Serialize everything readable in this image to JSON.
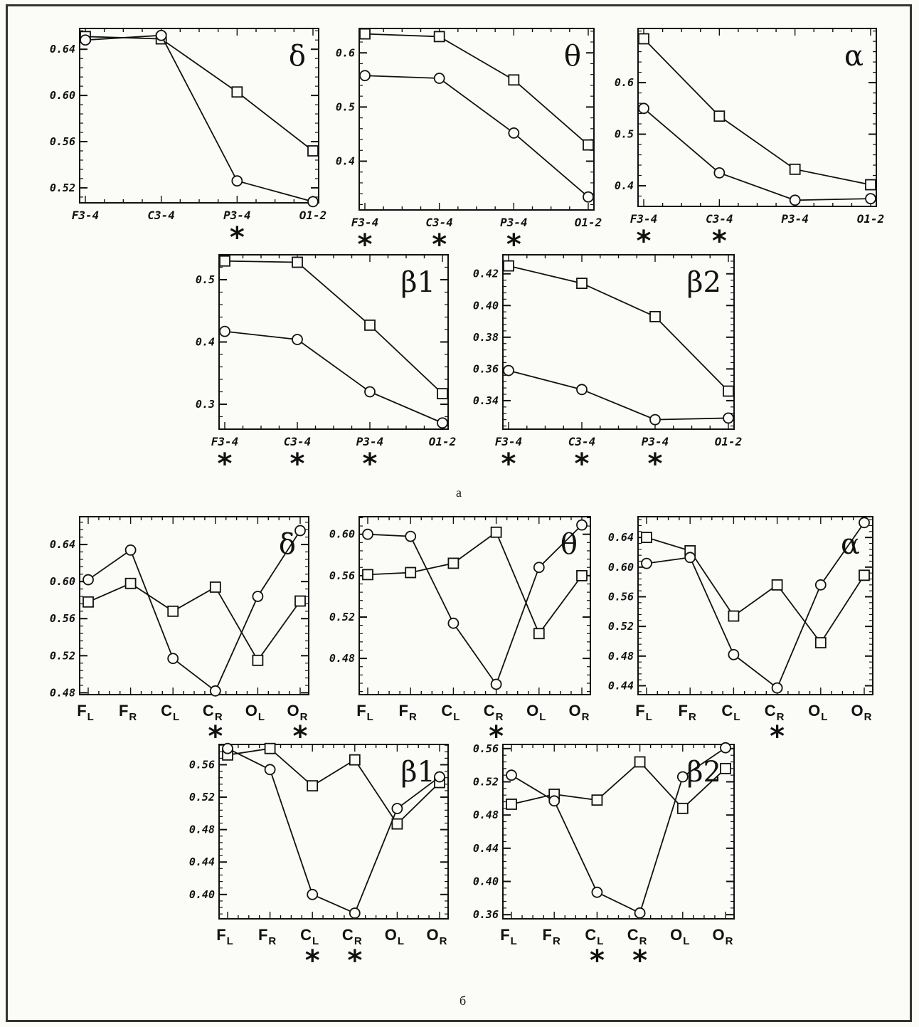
{
  "captions": {
    "a": "а",
    "b": "б"
  },
  "colors": {
    "ink": "#111111",
    "frame": "#333333"
  },
  "chart_data": [
    {
      "type": "line",
      "title": "δ",
      "categories": [
        "F3-4",
        "C3-4",
        "P3-4",
        "O1-2"
      ],
      "yticks": [
        0.52,
        0.56,
        0.6,
        0.64
      ],
      "ylim": [
        0.507,
        0.658
      ],
      "significant": [
        false,
        false,
        true,
        false
      ],
      "series": [
        {
          "marker": "square",
          "values": [
            0.651,
            0.649,
            0.603,
            0.552
          ]
        },
        {
          "marker": "circle",
          "values": [
            0.648,
            0.652,
            0.526,
            0.508
          ]
        }
      ]
    },
    {
      "type": "line",
      "title": "θ",
      "categories": [
        "F3-4",
        "C3-4",
        "P3-4",
        "O1-2"
      ],
      "yticks": [
        0.4,
        0.5,
        0.6
      ],
      "ylim": [
        0.31,
        0.645
      ],
      "significant": [
        true,
        true,
        true,
        false
      ],
      "series": [
        {
          "marker": "square",
          "values": [
            0.635,
            0.63,
            0.55,
            0.43
          ]
        },
        {
          "marker": "circle",
          "values": [
            0.558,
            0.553,
            0.452,
            0.334
          ]
        }
      ]
    },
    {
      "type": "line",
      "title": "α",
      "categories": [
        "F3-4",
        "C3-4",
        "P3-4",
        "O1-2"
      ],
      "yticks": [
        0.4,
        0.5,
        0.6
      ],
      "ylim": [
        0.36,
        0.705
      ],
      "significant": [
        true,
        true,
        false,
        false
      ],
      "series": [
        {
          "marker": "square",
          "values": [
            0.685,
            0.535,
            0.432,
            0.402
          ]
        },
        {
          "marker": "circle",
          "values": [
            0.55,
            0.425,
            0.372,
            0.375
          ]
        }
      ]
    },
    {
      "type": "line",
      "title": "β1",
      "categories": [
        "F3-4",
        "C3-4",
        "P3-4",
        "O1-2"
      ],
      "yticks": [
        0.3,
        0.4,
        0.5
      ],
      "ylim": [
        0.26,
        0.54
      ],
      "significant": [
        true,
        true,
        true,
        false
      ],
      "series": [
        {
          "marker": "square",
          "values": [
            0.53,
            0.528,
            0.427,
            0.317
          ]
        },
        {
          "marker": "circle",
          "values": [
            0.417,
            0.404,
            0.32,
            0.27
          ]
        }
      ]
    },
    {
      "type": "line",
      "title": "β2",
      "categories": [
        "F3-4",
        "C3-4",
        "P3-4",
        "O1-2"
      ],
      "yticks": [
        0.34,
        0.36,
        0.38,
        0.4,
        0.42
      ],
      "ylim": [
        0.322,
        0.432
      ],
      "significant": [
        true,
        true,
        true,
        false
      ],
      "series": [
        {
          "marker": "square",
          "values": [
            0.425,
            0.414,
            0.393,
            0.346
          ]
        },
        {
          "marker": "circle",
          "values": [
            0.359,
            0.347,
            0.328,
            0.329
          ]
        }
      ]
    },
    {
      "type": "line",
      "title": "δ",
      "categories": [
        [
          "F",
          "L"
        ],
        [
          "F",
          "R"
        ],
        [
          "C",
          "L"
        ],
        [
          "C",
          "R"
        ],
        [
          "O",
          "L"
        ],
        [
          "O",
          "R"
        ]
      ],
      "yticks": [
        0.48,
        0.52,
        0.56,
        0.6,
        0.64
      ],
      "ylim": [
        0.478,
        0.67
      ],
      "significant": [
        false,
        false,
        false,
        true,
        false,
        true
      ],
      "series": [
        {
          "marker": "square",
          "values": [
            0.578,
            0.598,
            0.568,
            0.594,
            0.515,
            0.579
          ]
        },
        {
          "marker": "circle",
          "values": [
            0.602,
            0.634,
            0.517,
            0.482,
            0.584,
            0.655
          ]
        }
      ]
    },
    {
      "type": "line",
      "title": "θ",
      "categories": [
        [
          "F",
          "L"
        ],
        [
          "F",
          "R"
        ],
        [
          "C",
          "L"
        ],
        [
          "C",
          "R"
        ],
        [
          "O",
          "L"
        ],
        [
          "O",
          "R"
        ]
      ],
      "yticks": [
        0.48,
        0.52,
        0.56,
        0.6
      ],
      "ylim": [
        0.445,
        0.617
      ],
      "significant": [
        false,
        false,
        false,
        true,
        false,
        false
      ],
      "series": [
        {
          "marker": "square",
          "values": [
            0.561,
            0.563,
            0.572,
            0.602,
            0.504,
            0.56
          ]
        },
        {
          "marker": "circle",
          "values": [
            0.6,
            0.598,
            0.514,
            0.455,
            0.568,
            0.609
          ]
        }
      ]
    },
    {
      "type": "line",
      "title": "α",
      "categories": [
        [
          "F",
          "L"
        ],
        [
          "F",
          "R"
        ],
        [
          "C",
          "L"
        ],
        [
          "C",
          "R"
        ],
        [
          "O",
          "L"
        ],
        [
          "O",
          "R"
        ]
      ],
      "yticks": [
        0.44,
        0.48,
        0.52,
        0.56,
        0.6,
        0.64
      ],
      "ylim": [
        0.428,
        0.668
      ],
      "significant": [
        false,
        false,
        false,
        true,
        false,
        false
      ],
      "series": [
        {
          "marker": "square",
          "values": [
            0.64,
            0.622,
            0.534,
            0.576,
            0.498,
            0.589
          ]
        },
        {
          "marker": "circle",
          "values": [
            0.605,
            0.613,
            0.482,
            0.437,
            0.576,
            0.66
          ]
        }
      ]
    },
    {
      "type": "line",
      "title": "β1",
      "categories": [
        [
          "F",
          "L"
        ],
        [
          "F",
          "R"
        ],
        [
          "C",
          "L"
        ],
        [
          "C",
          "R"
        ],
        [
          "O",
          "L"
        ],
        [
          "O",
          "R"
        ]
      ],
      "yticks": [
        0.4,
        0.44,
        0.48,
        0.52,
        0.56
      ],
      "ylim": [
        0.37,
        0.585
      ],
      "significant": [
        false,
        false,
        true,
        true,
        false,
        false
      ],
      "series": [
        {
          "marker": "square",
          "values": [
            0.572,
            0.58,
            0.534,
            0.566,
            0.487,
            0.538
          ]
        },
        {
          "marker": "circle",
          "values": [
            0.58,
            0.554,
            0.4,
            0.377,
            0.506,
            0.545
          ]
        }
      ]
    },
    {
      "type": "line",
      "title": "β2",
      "categories": [
        [
          "F",
          "L"
        ],
        [
          "F",
          "R"
        ],
        [
          "C",
          "L"
        ],
        [
          "C",
          "R"
        ],
        [
          "O",
          "L"
        ],
        [
          "O",
          "R"
        ]
      ],
      "yticks": [
        0.36,
        0.4,
        0.44,
        0.48,
        0.52,
        0.56
      ],
      "ylim": [
        0.355,
        0.565
      ],
      "significant": [
        false,
        false,
        true,
        true,
        false,
        false
      ],
      "series": [
        {
          "marker": "square",
          "values": [
            0.493,
            0.505,
            0.498,
            0.544,
            0.488,
            0.536
          ]
        },
        {
          "marker": "circle",
          "values": [
            0.528,
            0.497,
            0.387,
            0.362,
            0.526,
            0.561
          ]
        }
      ]
    }
  ]
}
